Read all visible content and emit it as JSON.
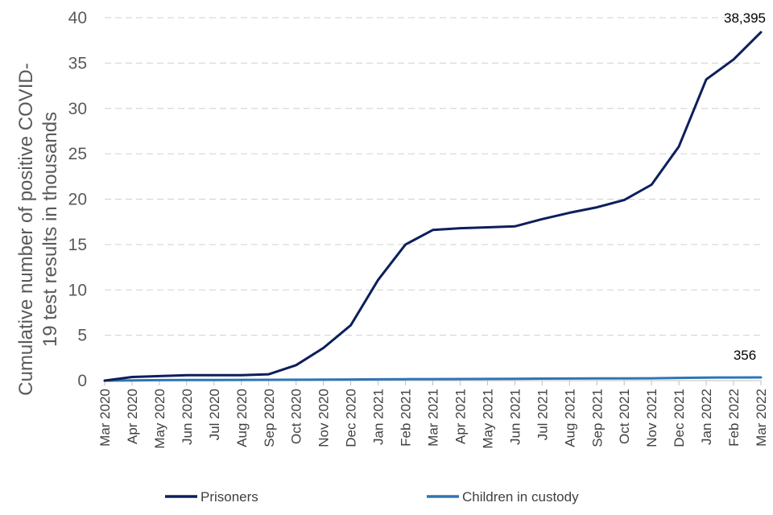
{
  "chart_data": {
    "type": "line",
    "ylabel": "Cumulative number of positive  COVID-19 test results in thousands",
    "ylabel_lines": [
      "Cumulative number of positive  COVID-",
      "19 test results in thousands"
    ],
    "ylim": [
      0,
      40
    ],
    "yticks": [
      0,
      5,
      10,
      15,
      20,
      25,
      30,
      35,
      40
    ],
    "grid": true,
    "legend_position": "bottom",
    "categories": [
      "Mar 2020",
      "Apr 2020",
      "May 2020",
      "Jun 2020",
      "Jul 2020",
      "Aug 2020",
      "Sep 2020",
      "Oct 2020",
      "Nov 2020",
      "Dec 2020",
      "Jan 2021",
      "Feb 2021",
      "Mar 2021",
      "Apr 2021",
      "May 2021",
      "Jun 2021",
      "Jul 2021",
      "Aug 2021",
      "Sep 2021",
      "Oct 2021",
      "Nov 2021",
      "Dec 2021",
      "Jan 2022",
      "Feb 2022",
      "Mar 2022"
    ],
    "series": [
      {
        "name": "Prisoners",
        "color": "#0c1f5c",
        "values": [
          0,
          0.4,
          0.5,
          0.6,
          0.6,
          0.6,
          0.7,
          1.7,
          3.6,
          6.1,
          11.1,
          15.0,
          16.6,
          16.8,
          16.9,
          17.0,
          17.8,
          18.5,
          19.1,
          19.9,
          21.6,
          25.8,
          33.2,
          35.4,
          38.395
        ],
        "end_label": "38,395"
      },
      {
        "name": "Children in custody",
        "color": "#2e75b6",
        "values": [
          0,
          0.03,
          0.05,
          0.06,
          0.07,
          0.08,
          0.09,
          0.1,
          0.11,
          0.12,
          0.14,
          0.16,
          0.17,
          0.18,
          0.19,
          0.2,
          0.22,
          0.23,
          0.24,
          0.25,
          0.26,
          0.3,
          0.34,
          0.35,
          0.356
        ],
        "end_label": "356"
      }
    ]
  }
}
